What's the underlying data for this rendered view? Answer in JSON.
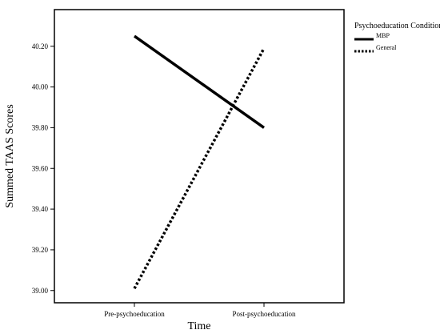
{
  "chart_data": {
    "type": "line",
    "title": "",
    "xlabel": "Time",
    "ylabel": "Summed TAAS Scores",
    "categories": [
      "Pre-psychoeducation",
      "Post-psychoeducation"
    ],
    "ylim": [
      38.94,
      40.38
    ],
    "yticks": [
      "39.00",
      "39.20",
      "39.40",
      "39.60",
      "39.80",
      "40.00",
      "40.20"
    ],
    "grid": false,
    "legend": {
      "title": "Psychoeducation Condition",
      "position": "right"
    },
    "series": [
      {
        "name": "MBP",
        "values": [
          40.25,
          39.8
        ],
        "style": "solid",
        "color": "#000000"
      },
      {
        "name": "General",
        "values": [
          39.01,
          40.19
        ],
        "style": "dotted",
        "color": "#000000"
      }
    ]
  }
}
